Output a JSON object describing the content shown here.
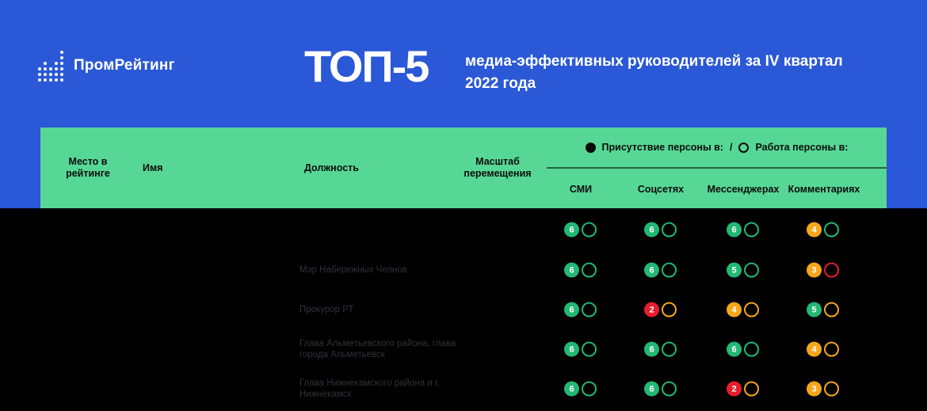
{
  "brand": {
    "name": "ПромРейтинг",
    "logo_icon": "equalizer-dots-icon"
  },
  "header": {
    "title": "ТОП-5",
    "subtitle_line1": "медиа-эффективных руководителей за IV квартал",
    "subtitle_line2": "2022 года"
  },
  "table": {
    "columns": {
      "place": "Место в рейтинге",
      "name": "Имя",
      "position": "Должность",
      "movement": "Масштаб перемещения"
    },
    "legend": {
      "presence_label": "Присутствие персоны в:",
      "separator": "/",
      "work_label": "Работа персоны в:"
    },
    "metric_columns": [
      "СМИ",
      "Соцсетях",
      "Мессенджерах",
      "Комментариях"
    ]
  },
  "chart_data": {
    "type": "table",
    "title": "ТОП-5 медиа-эффективных руководителей за IV квартал 2022 года",
    "legend": [
      "Присутствие персоны в:",
      "Работа персоны в:"
    ],
    "metric_columns": [
      "СМИ",
      "Соцсетях",
      "Мессенджерах",
      "Комментариях"
    ],
    "rows": [
      {
        "position_lines": [],
        "scores": [
          {
            "value": "6",
            "fill": "green",
            "ring": "green"
          },
          {
            "value": "6",
            "fill": "green",
            "ring": "green"
          },
          {
            "value": "6",
            "fill": "green",
            "ring": "green"
          },
          {
            "value": "4",
            "fill": "orange",
            "ring": "green"
          }
        ]
      },
      {
        "position_lines": [
          "Мэр Набережных Челнов"
        ],
        "scores": [
          {
            "value": "6",
            "fill": "green",
            "ring": "green"
          },
          {
            "value": "6",
            "fill": "green",
            "ring": "green"
          },
          {
            "value": "5",
            "fill": "green",
            "ring": "green"
          },
          {
            "value": "3",
            "fill": "orange",
            "ring": "red"
          }
        ]
      },
      {
        "position_lines": [
          "Прокурор РТ"
        ],
        "scores": [
          {
            "value": "6",
            "fill": "green",
            "ring": "green"
          },
          {
            "value": "2",
            "fill": "red",
            "ring": "orange"
          },
          {
            "value": "4",
            "fill": "orange",
            "ring": "orange"
          },
          {
            "value": "5",
            "fill": "green",
            "ring": "orange"
          }
        ]
      },
      {
        "position_lines": [
          "Глава Альметьевского района, глава",
          "города Альметьевск"
        ],
        "scores": [
          {
            "value": "6",
            "fill": "green",
            "ring": "green"
          },
          {
            "value": "6",
            "fill": "green",
            "ring": "green"
          },
          {
            "value": "6",
            "fill": "green",
            "ring": "green"
          },
          {
            "value": "4",
            "fill": "orange",
            "ring": "orange"
          }
        ]
      },
      {
        "position_lines": [
          "Глава Нижнекамского района и г.",
          "Нижнекамск"
        ],
        "scores": [
          {
            "value": "6",
            "fill": "green",
            "ring": "green"
          },
          {
            "value": "6",
            "fill": "green",
            "ring": "green"
          },
          {
            "value": "2",
            "fill": "red",
            "ring": "orange"
          },
          {
            "value": "3",
            "fill": "orange",
            "ring": "orange"
          }
        ]
      }
    ]
  },
  "palette": {
    "green": "#23b873",
    "orange": "#f6a61a",
    "red": "#e41e2d",
    "blue": "#2a58d6",
    "mint": "#57d796",
    "body_bg": "#000000",
    "muted_text": "#2e3235"
  }
}
